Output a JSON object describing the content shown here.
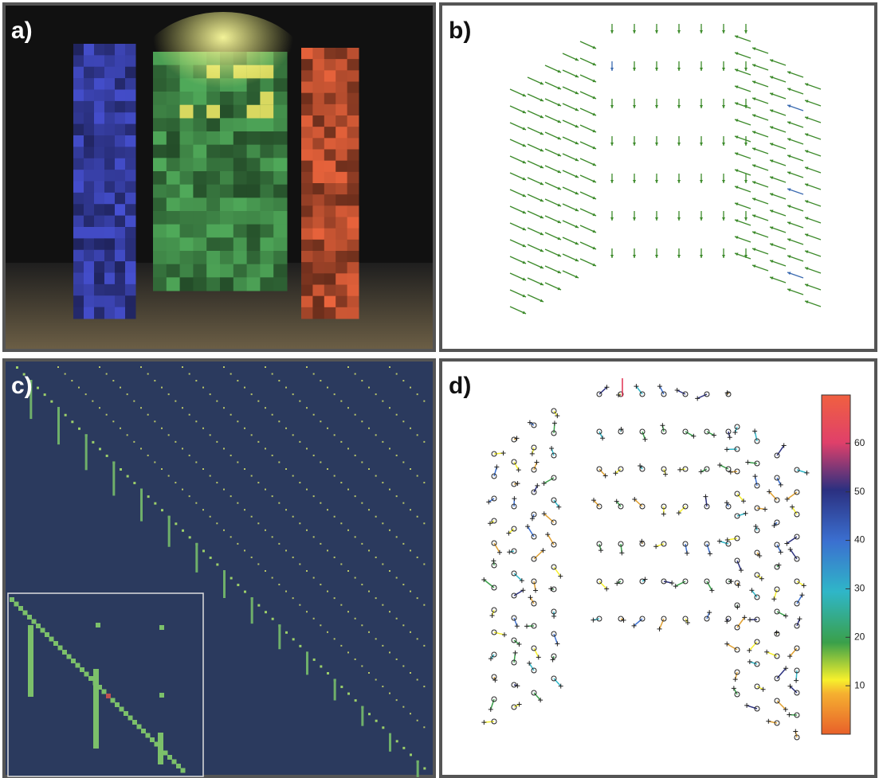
{
  "panels": {
    "a": {
      "label": "a)"
    },
    "b": {
      "label": "b)"
    },
    "c": {
      "label": "c)"
    },
    "d": {
      "label": "d)"
    }
  },
  "colorbar": {
    "lim": [
      0,
      70
    ],
    "ticks": [
      10,
      20,
      30,
      40,
      50,
      60
    ]
  }
}
